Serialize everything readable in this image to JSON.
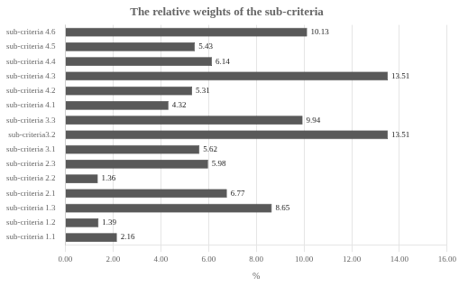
{
  "chart_data": {
    "type": "bar",
    "orientation": "horizontal",
    "title": "The relative weights of the sub-criteria",
    "xlabel": "%",
    "categories": [
      "sub-criteria 1.1",
      "sub-criteria 1.2",
      "sub-criteria 1.3",
      "sub-criteria 2.1",
      "sub-criteria 2.2",
      "sub-criteria 2.3",
      "sub-criteria 3.1",
      "sub-criteria3.2",
      "sub-criteria 3.3",
      "sub-criteria 4.1",
      "sub-criteria 4.2",
      "sub-criteria 4.3",
      "sub-criteria 4.4",
      "sub-criteria 4.5",
      "sub-criteria 4.6"
    ],
    "values": [
      2.16,
      1.39,
      8.65,
      6.77,
      1.36,
      5.98,
      5.62,
      13.51,
      9.94,
      4.32,
      5.31,
      13.51,
      6.14,
      5.43,
      10.13
    ],
    "color": "#595959",
    "xlim": [
      0,
      16.0
    ],
    "xticks": [
      {
        "value": 0,
        "label": "0.00"
      },
      {
        "value": 2,
        "label": "2.00"
      },
      {
        "value": 4,
        "label": "4.00"
      },
      {
        "value": 6,
        "label": "6.00"
      },
      {
        "value": 8,
        "label": "8.00"
      },
      {
        "value": 10,
        "label": "10.00"
      },
      {
        "value": 12,
        "label": "12.00"
      },
      {
        "value": 14,
        "label": "14.00"
      },
      {
        "value": 16,
        "label": "16.00"
      }
    ],
    "grid": true,
    "data_labels": true
  }
}
